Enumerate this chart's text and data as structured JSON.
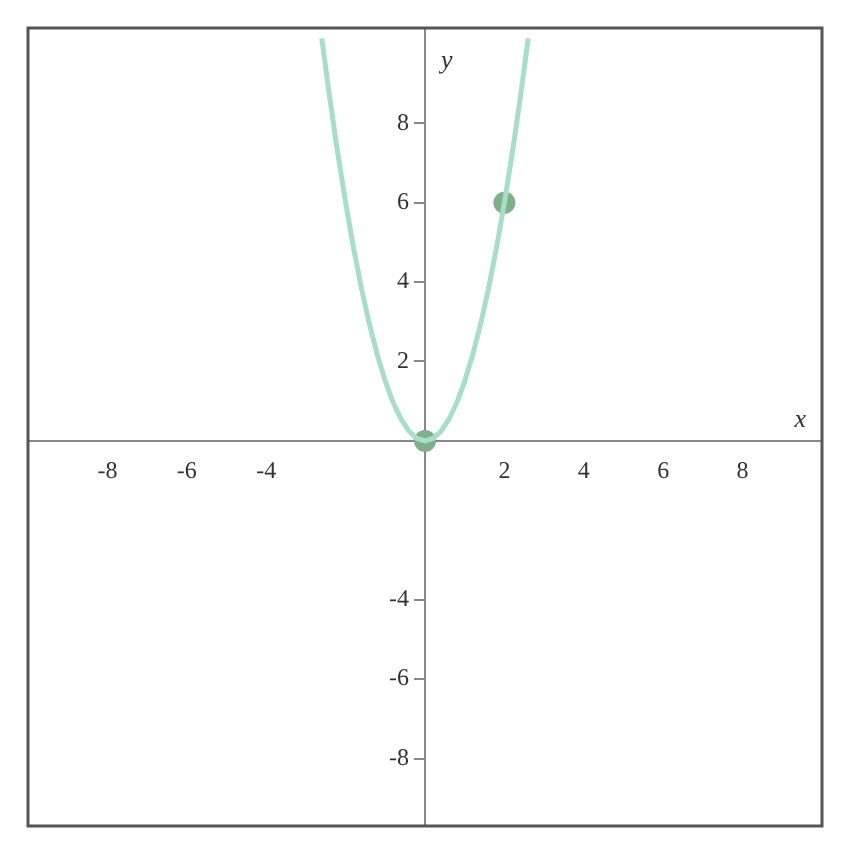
{
  "chart_data": {
    "type": "line",
    "xlabel": "x",
    "ylabel": "y",
    "xlim": [
      -10,
      10
    ],
    "ylim": [
      -9.7,
      10.4
    ],
    "xticks": [
      -8,
      -6,
      -4,
      2,
      4,
      6,
      8
    ],
    "yticks": [
      -8,
      -6,
      -4,
      2,
      4,
      6,
      8
    ],
    "grid": false,
    "series": [
      {
        "color": "#a8dccb",
        "x": [
          -2.6,
          -2.4,
          -2.2,
          -2,
          -1.8,
          -1.6,
          -1.4,
          -1.2,
          -1,
          -0.8,
          -0.6,
          -0.4,
          -0.2,
          0,
          0.2,
          0.4,
          0.6,
          0.8,
          1,
          1.2,
          1.4,
          1.6,
          1.8,
          2,
          2.2,
          2.4,
          2.6
        ],
        "values": [
          10.14,
          8.64,
          7.26,
          6,
          4.86,
          3.84,
          2.94,
          2.16,
          1.5,
          0.96,
          0.54,
          0.24,
          0.06,
          0,
          0.06,
          0.24,
          0.54,
          0.96,
          1.5,
          2.16,
          2.94,
          3.84,
          4.86,
          6,
          7.26,
          8.64,
          10.14
        ],
        "marker": "none"
      },
      {
        "type": "scatter",
        "color": "#7fb08a",
        "x": [
          0,
          2
        ],
        "values": [
          0,
          6
        ],
        "marker": "circle"
      }
    ]
  }
}
